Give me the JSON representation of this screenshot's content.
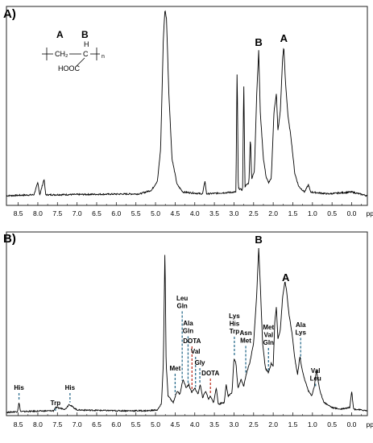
{
  "chart_data": [
    {
      "type": "line",
      "panel_label": "A)",
      "xlabel": "ppm",
      "x_reversed": true,
      "xlim": [
        8.8,
        -0.4
      ],
      "x_ticks": [
        "8.5",
        "8.0",
        "7.5",
        "7.0",
        "6.5",
        "6.0",
        "5.5",
        "5.0",
        "4.5",
        "4.0",
        "3.5",
        "3.0",
        "2.5",
        "2.0",
        "1.5",
        "1.0",
        "0.5",
        "0.0"
      ],
      "peak_labels": [
        {
          "text": "B",
          "ppm": 2.37
        },
        {
          "text": "A",
          "ppm": 1.73
        }
      ],
      "structure": {
        "label_a": "A",
        "label_b": "B",
        "ch2": "CH₂",
        "ch": "C",
        "h": "H",
        "acid": "HOOC",
        "n": "n"
      },
      "spectrum": [
        [
          8.8,
          0.0
        ],
        [
          8.1,
          0.005
        ],
        [
          8.0,
          0.07
        ],
        [
          7.95,
          0.005
        ],
        [
          7.84,
          0.09
        ],
        [
          7.8,
          0.005
        ],
        [
          5.4,
          0.01
        ],
        [
          5.1,
          0.03
        ],
        [
          4.95,
          0.08
        ],
        [
          4.87,
          0.25
        ],
        [
          4.8,
          0.85
        ],
        [
          4.76,
          1.0
        ],
        [
          4.72,
          0.95
        ],
        [
          4.66,
          0.55
        ],
        [
          4.58,
          0.2
        ],
        [
          4.45,
          0.06
        ],
        [
          4.3,
          0.02
        ],
        [
          3.8,
          0.01
        ],
        [
          3.74,
          0.08
        ],
        [
          3.7,
          0.01
        ],
        [
          2.95,
          0.02
        ],
        [
          2.92,
          0.7
        ],
        [
          2.89,
          0.04
        ],
        [
          2.78,
          0.03
        ],
        [
          2.75,
          0.62
        ],
        [
          2.72,
          0.05
        ],
        [
          2.62,
          0.07
        ],
        [
          2.58,
          0.32
        ],
        [
          2.55,
          0.09
        ],
        [
          2.48,
          0.13
        ],
        [
          2.42,
          0.55
        ],
        [
          2.37,
          0.78
        ],
        [
          2.33,
          0.45
        ],
        [
          2.25,
          0.2
        ],
        [
          2.18,
          0.1
        ],
        [
          2.12,
          0.07
        ],
        [
          2.05,
          0.09
        ],
        [
          1.98,
          0.45
        ],
        [
          1.92,
          0.55
        ],
        [
          1.88,
          0.35
        ],
        [
          1.82,
          0.45
        ],
        [
          1.76,
          0.74
        ],
        [
          1.73,
          0.8
        ],
        [
          1.69,
          0.62
        ],
        [
          1.62,
          0.42
        ],
        [
          1.55,
          0.32
        ],
        [
          1.45,
          0.12
        ],
        [
          1.35,
          0.05
        ],
        [
          1.2,
          0.02
        ],
        [
          1.1,
          0.06
        ],
        [
          1.05,
          0.02
        ],
        [
          0.6,
          0.01
        ],
        [
          0.0,
          0.02
        ],
        [
          -0.4,
          0.0
        ]
      ]
    },
    {
      "type": "line",
      "panel_label": "B)",
      "xlabel": "ppm",
      "x_reversed": true,
      "xlim": [
        8.8,
        -0.4
      ],
      "x_ticks": [
        "8.5",
        "8.0",
        "7.5",
        "7.0",
        "6.5",
        "6.0",
        "5.5",
        "5.0",
        "4.5",
        "4.0",
        "3.5",
        "3.0",
        "2.5",
        "2.0",
        "1.5",
        "1.0",
        "0.5",
        "0.0"
      ],
      "peak_labels": [
        {
          "text": "B",
          "ppm": 2.37
        },
        {
          "text": "A",
          "ppm": 1.68
        }
      ],
      "assignments": [
        {
          "lines": [
            "His"
          ],
          "ppm": 8.48,
          "color": "#2f6f8f"
        },
        {
          "lines": [
            "His"
          ],
          "ppm": 7.18,
          "color": "#2f6f8f"
        },
        {
          "lines": [
            "Trp"
          ],
          "ppm": 7.55,
          "color": "#2f6f8f"
        },
        {
          "lines": [
            "Met"
          ],
          "ppm": 4.5,
          "color": "#2f6f8f"
        },
        {
          "lines": [
            "Leu",
            "Gln"
          ],
          "ppm": 4.32,
          "color": "#2f6f8f"
        },
        {
          "lines": [
            "Ala",
            "Gln"
          ],
          "ppm": 4.17,
          "color": "#2f6f8f"
        },
        {
          "lines": [
            "DOTA"
          ],
          "ppm": 4.07,
          "color": "#c0392b"
        },
        {
          "lines": [
            "Val"
          ],
          "ppm": 3.98,
          "color": "#2f6f8f"
        },
        {
          "lines": [
            "Gly"
          ],
          "ppm": 3.87,
          "color": "#2f6f8f"
        },
        {
          "lines": [
            "DOTA"
          ],
          "ppm": 3.6,
          "color": "#c0392b"
        },
        {
          "lines": [
            "Lys",
            "His",
            "Trp"
          ],
          "ppm": 2.99,
          "color": "#2f6f8f"
        },
        {
          "lines": [
            "Asn",
            "Met"
          ],
          "ppm": 2.7,
          "color": "#2f6f8f"
        },
        {
          "lines": [
            "Met",
            "Val",
            "Gln"
          ],
          "ppm": 2.12,
          "color": "#2f6f8f"
        },
        {
          "lines": [
            "Ala",
            "Lys"
          ],
          "ppm": 1.3,
          "color": "#2f6f8f"
        },
        {
          "lines": [
            "Val",
            "Leu"
          ],
          "ppm": 0.92,
          "color": "#2f6f8f"
        }
      ],
      "spectrum": [
        [
          8.8,
          0.0
        ],
        [
          8.52,
          0.005
        ],
        [
          8.48,
          0.06
        ],
        [
          8.44,
          0.005
        ],
        [
          7.6,
          0.01
        ],
        [
          7.55,
          0.03
        ],
        [
          7.3,
          0.02
        ],
        [
          7.2,
          0.05
        ],
        [
          7.15,
          0.04
        ],
        [
          7.0,
          0.015
        ],
        [
          6.0,
          0.01
        ],
        [
          5.2,
          0.01
        ],
        [
          4.95,
          0.015
        ],
        [
          4.85,
          0.05
        ],
        [
          4.8,
          0.3
        ],
        [
          4.76,
          1.0
        ],
        [
          4.73,
          0.3
        ],
        [
          4.68,
          0.1
        ],
        [
          4.55,
          0.06
        ],
        [
          4.45,
          0.13
        ],
        [
          4.38,
          0.11
        ],
        [
          4.3,
          0.2
        ],
        [
          4.22,
          0.15
        ],
        [
          4.15,
          0.17
        ],
        [
          4.08,
          0.12
        ],
        [
          4.0,
          0.15
        ],
        [
          3.92,
          0.11
        ],
        [
          3.86,
          0.17
        ],
        [
          3.8,
          0.09
        ],
        [
          3.72,
          0.13
        ],
        [
          3.65,
          0.08
        ],
        [
          3.6,
          0.1
        ],
        [
          3.52,
          0.06
        ],
        [
          3.45,
          0.15
        ],
        [
          3.4,
          0.05
        ],
        [
          3.25,
          0.06
        ],
        [
          3.2,
          0.17
        ],
        [
          3.15,
          0.1
        ],
        [
          3.05,
          0.12
        ],
        [
          3.0,
          0.33
        ],
        [
          2.95,
          0.3
        ],
        [
          2.9,
          0.15
        ],
        [
          2.82,
          0.2
        ],
        [
          2.75,
          0.16
        ],
        [
          2.68,
          0.24
        ],
        [
          2.6,
          0.3
        ],
        [
          2.5,
          0.42
        ],
        [
          2.42,
          0.72
        ],
        [
          2.37,
          1.0
        ],
        [
          2.33,
          0.78
        ],
        [
          2.27,
          0.42
        ],
        [
          2.2,
          0.27
        ],
        [
          2.12,
          0.24
        ],
        [
          2.05,
          0.3
        ],
        [
          2.0,
          0.28
        ],
        [
          1.96,
          0.55
        ],
        [
          1.92,
          0.64
        ],
        [
          1.88,
          0.45
        ],
        [
          1.82,
          0.5
        ],
        [
          1.76,
          0.7
        ],
        [
          1.7,
          0.8
        ],
        [
          1.66,
          0.74
        ],
        [
          1.6,
          0.6
        ],
        [
          1.52,
          0.48
        ],
        [
          1.45,
          0.33
        ],
        [
          1.38,
          0.23
        ],
        [
          1.32,
          0.34
        ],
        [
          1.28,
          0.28
        ],
        [
          1.2,
          0.2
        ],
        [
          1.1,
          0.13
        ],
        [
          1.02,
          0.1
        ],
        [
          0.95,
          0.16
        ],
        [
          0.9,
          0.26
        ],
        [
          0.86,
          0.2
        ],
        [
          0.8,
          0.12
        ],
        [
          0.7,
          0.06
        ],
        [
          0.5,
          0.03
        ],
        [
          0.3,
          0.02
        ],
        [
          0.05,
          0.03
        ],
        [
          0.0,
          0.13
        ],
        [
          -0.05,
          0.02
        ],
        [
          -0.4,
          0.01
        ]
      ]
    }
  ]
}
